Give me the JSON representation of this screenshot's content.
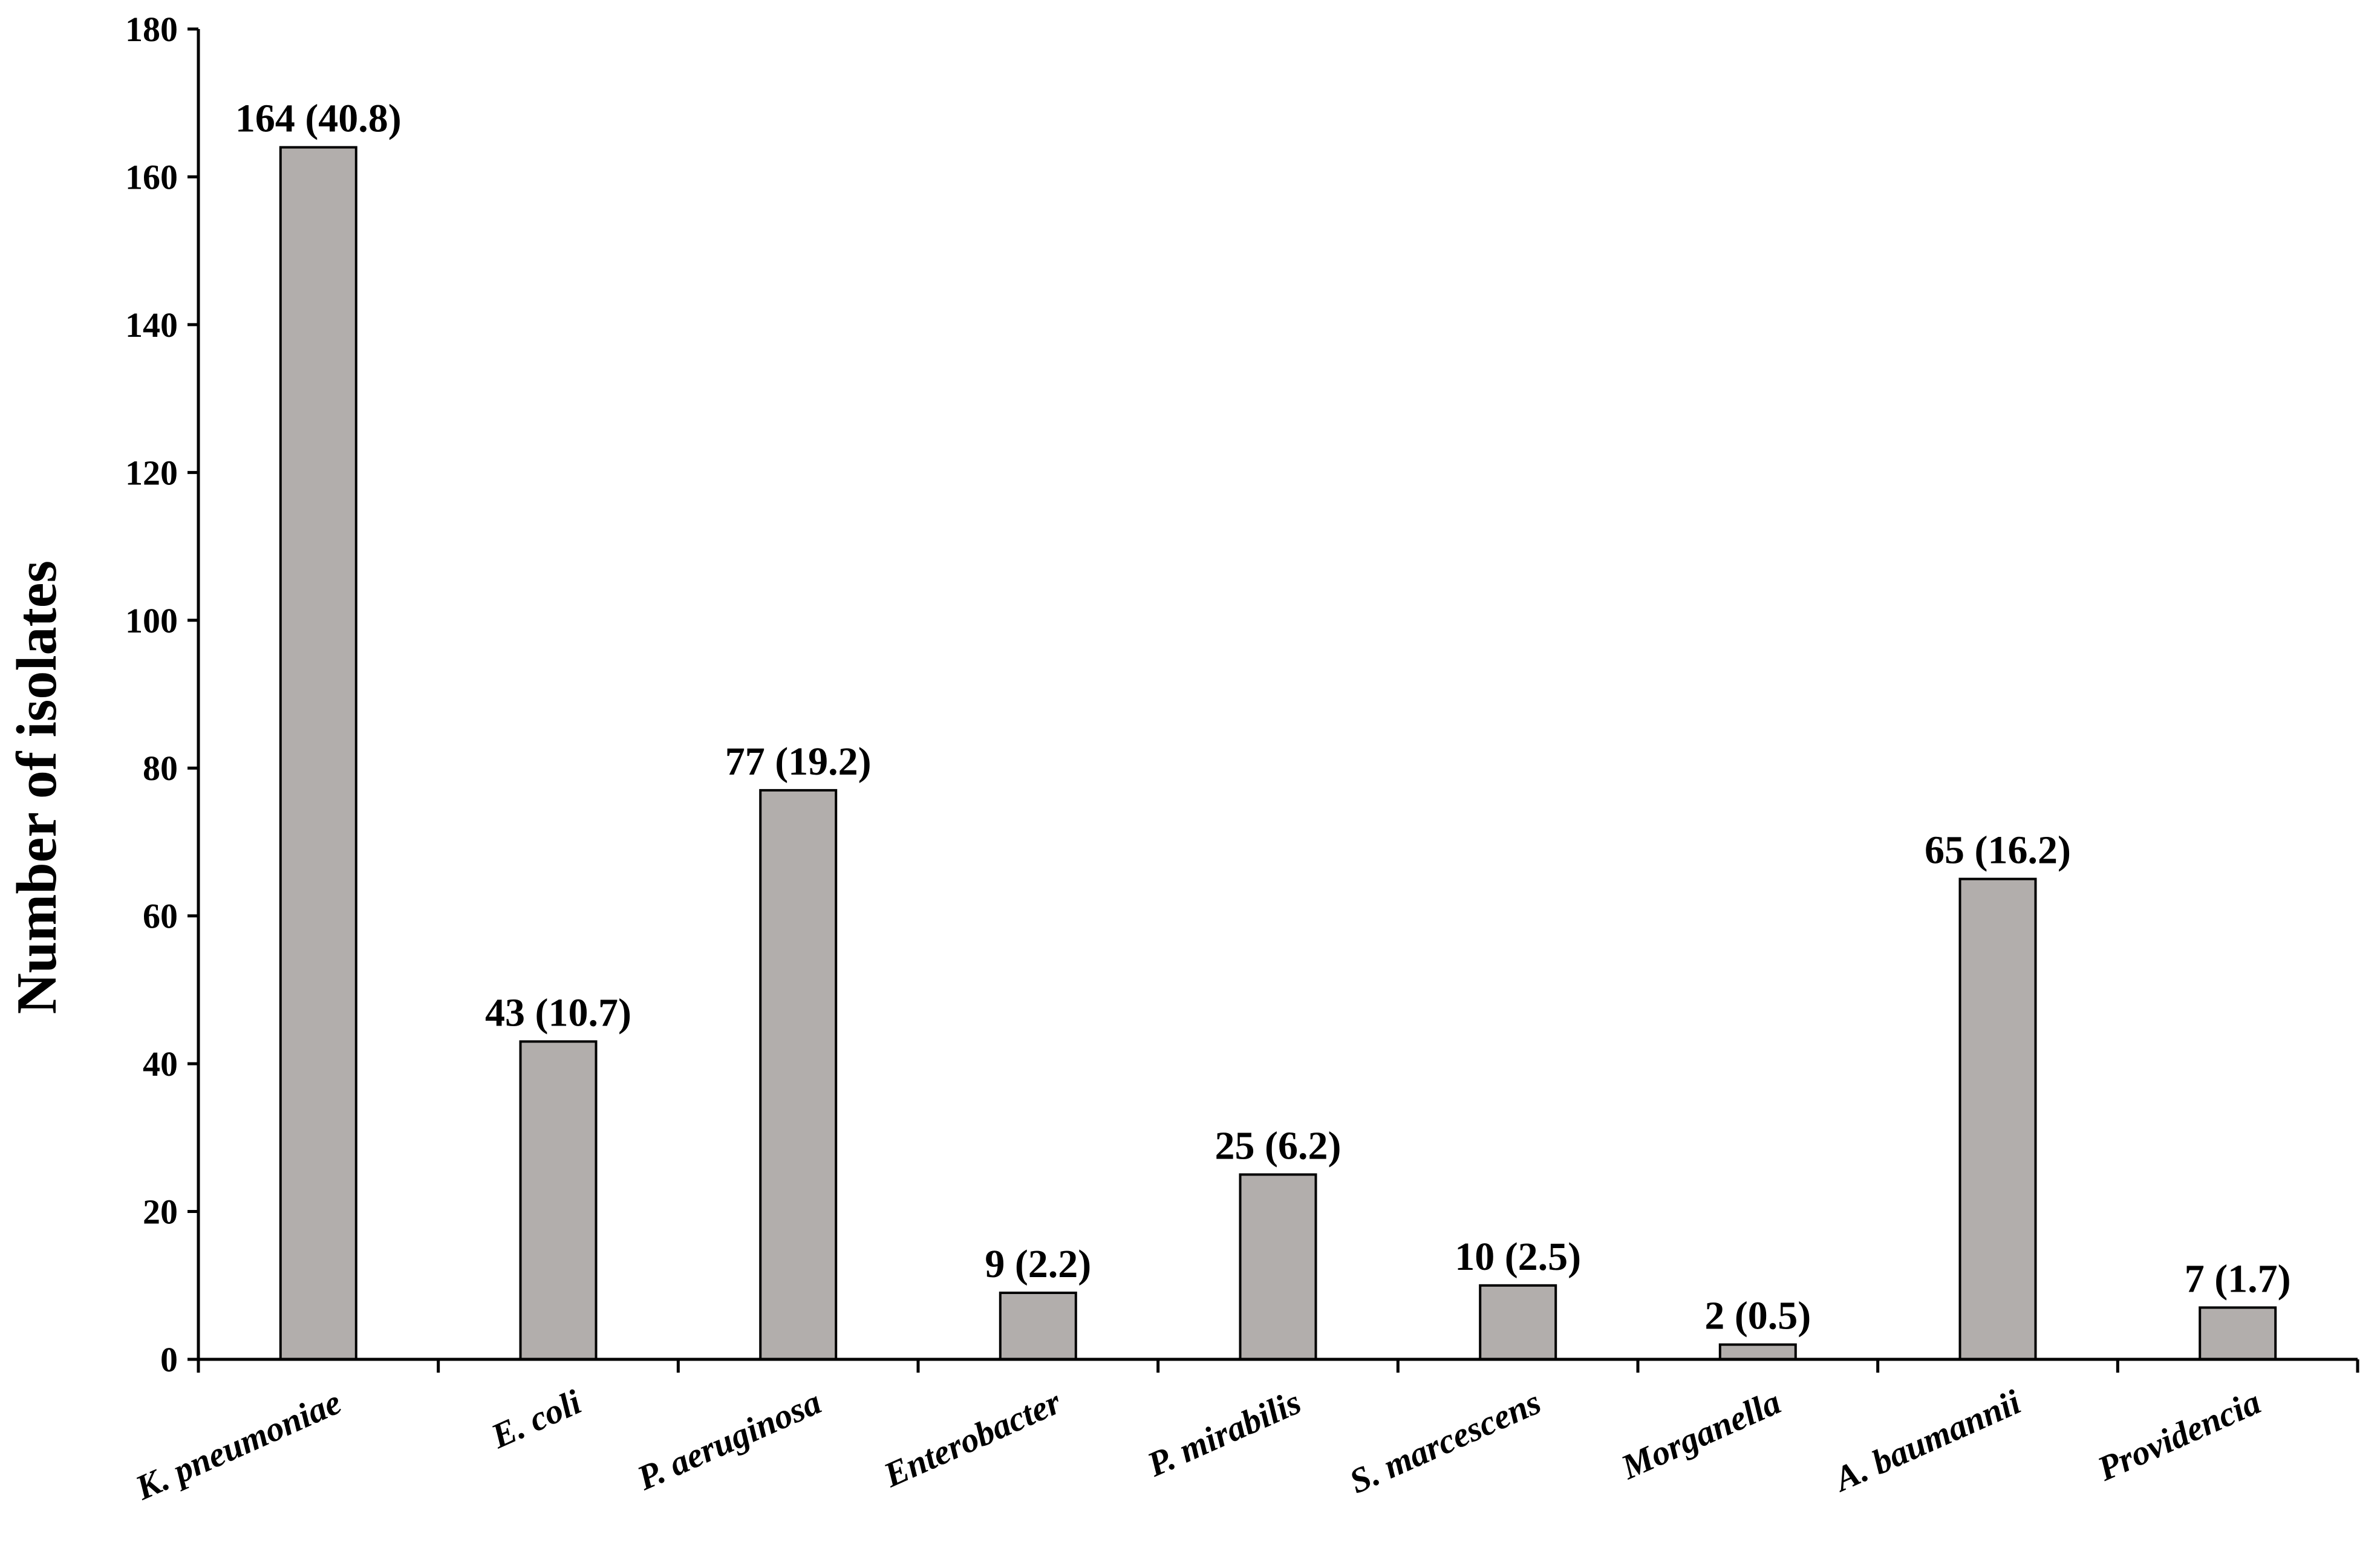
{
  "chart_data": {
    "type": "bar",
    "title": "",
    "xlabel": "",
    "ylabel": "Number of isolates",
    "ylim": [
      0,
      180
    ],
    "yticks": [
      0,
      20,
      40,
      60,
      80,
      100,
      120,
      140,
      160,
      180
    ],
    "grid": false,
    "legend": "none",
    "categories": [
      "K. pneumoniae",
      "E. coli",
      "P. aeruginosa",
      "Enterobacter",
      "P. mirabilis",
      "S. marcescens",
      "Morganella",
      "A. baumannii",
      "Providencia"
    ],
    "values": [
      164,
      43,
      77,
      9,
      25,
      10,
      2,
      65,
      7
    ],
    "data_labels": [
      "164 (40.8)",
      "43 (10.7)",
      "77 (19.2)",
      "9 (2.2)",
      "25 (6.2)",
      "10 (2.5)",
      "2 (0.5)",
      "65 (16.2)",
      "7 (1.7)"
    ],
    "colors": {
      "bar_fill": "#b2aeac",
      "bar_stroke": "#000000",
      "axis": "#000000"
    }
  }
}
